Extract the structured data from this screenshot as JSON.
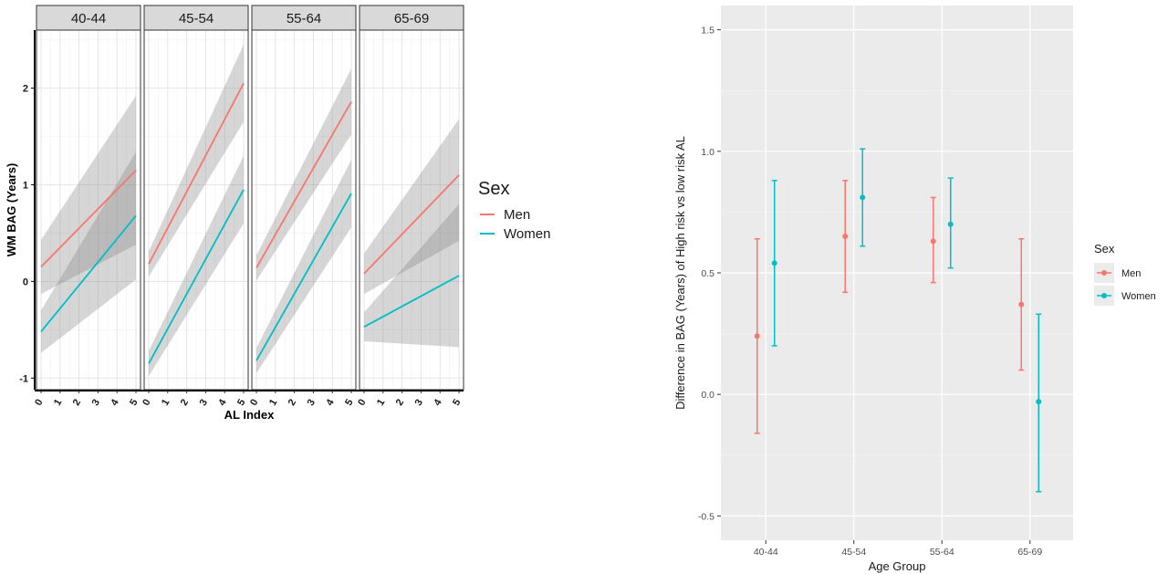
{
  "chart_data": [
    {
      "type": "line",
      "ylabel": "WM BAG (Years)",
      "xlabel": "AL Index",
      "x_ticks": [
        "0",
        "1",
        "2",
        "3",
        "4",
        "5"
      ],
      "y_ticks": [
        "-1",
        "0",
        "1",
        "2"
      ],
      "xlim": [
        0,
        5
      ],
      "ylim": [
        -1.12,
        2.6
      ],
      "grid": true,
      "ribbon": "95% confidence band (grey)",
      "legend": {
        "title": "Sex",
        "position": "right",
        "entries": [
          {
            "label": "Men",
            "color": "#F8766D"
          },
          {
            "label": "Women",
            "color": "#00BFC4"
          }
        ]
      },
      "facets": [
        {
          "label": "40-44",
          "series": [
            {
              "name": "Men",
              "x": [
                0,
                5
              ],
              "y": [
                0.15,
                1.15
              ],
              "lower": [
                -0.13,
                0.38
              ],
              "upper": [
                0.43,
                1.92
              ]
            },
            {
              "name": "Women",
              "x": [
                0,
                5
              ],
              "y": [
                -0.52,
                0.68
              ],
              "lower": [
                -0.74,
                0.02
              ],
              "upper": [
                -0.3,
                1.34
              ]
            }
          ]
        },
        {
          "label": "45-54",
          "series": [
            {
              "name": "Men",
              "x": [
                0,
                5
              ],
              "y": [
                0.18,
                2.05
              ],
              "lower": [
                0.05,
                1.65
              ],
              "upper": [
                0.31,
                2.45
              ]
            },
            {
              "name": "Women",
              "x": [
                0,
                5
              ],
              "y": [
                -0.85,
                0.95
              ],
              "lower": [
                -0.98,
                0.6
              ],
              "upper": [
                -0.72,
                1.3
              ]
            }
          ]
        },
        {
          "label": "55-64",
          "series": [
            {
              "name": "Men",
              "x": [
                0,
                5
              ],
              "y": [
                0.14,
                1.86
              ],
              "lower": [
                0.01,
                1.52
              ],
              "upper": [
                0.27,
                2.2
              ]
            },
            {
              "name": "Women",
              "x": [
                0,
                5
              ],
              "y": [
                -0.82,
                0.91
              ],
              "lower": [
                -0.95,
                0.56
              ],
              "upper": [
                -0.69,
                1.26
              ]
            }
          ]
        },
        {
          "label": "65-69",
          "series": [
            {
              "name": "Men",
              "x": [
                0,
                5
              ],
              "y": [
                0.08,
                1.1
              ],
              "lower": [
                -0.13,
                0.42
              ],
              "upper": [
                0.29,
                1.68
              ]
            },
            {
              "name": "Women",
              "x": [
                0,
                5
              ],
              "y": [
                -0.47,
                0.06
              ],
              "lower": [
                -0.62,
                -0.68
              ],
              "upper": [
                -0.32,
                0.8
              ]
            }
          ]
        }
      ]
    },
    {
      "type": "scatter",
      "subtype": "point with error bars",
      "xlabel": "Age Group",
      "ylabel": "Difference in BAG (Years) of High risk vs low risk AL",
      "categories": [
        "40-44",
        "45-54",
        "55-64",
        "65-69"
      ],
      "y_ticks": [
        "-0.5",
        "0.0",
        "0.5",
        "1.0",
        "1.5"
      ],
      "ylim": [
        -0.6,
        1.6
      ],
      "grid": true,
      "legend": {
        "title": "Sex",
        "position": "right",
        "entries": [
          {
            "label": "Men",
            "color": "#F8766D"
          },
          {
            "label": "Women",
            "color": "#00BFC4"
          }
        ]
      },
      "series": [
        {
          "name": "Men",
          "values": [
            0.24,
            0.65,
            0.63,
            0.37
          ],
          "lower": [
            -0.16,
            0.42,
            0.46,
            0.1
          ],
          "upper": [
            0.64,
            0.88,
            0.81,
            0.64
          ]
        },
        {
          "name": "Women",
          "values": [
            0.54,
            0.81,
            0.7,
            -0.03
          ],
          "lower": [
            0.2,
            0.61,
            0.52,
            -0.4
          ],
          "upper": [
            0.88,
            1.01,
            0.89,
            0.33
          ]
        }
      ]
    }
  ]
}
